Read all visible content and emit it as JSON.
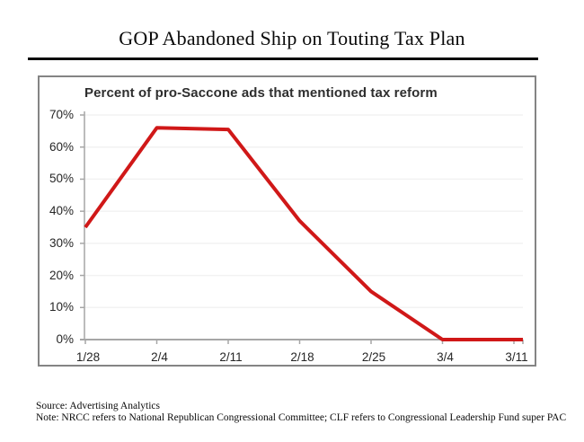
{
  "page": {
    "title": "GOP Abandoned Ship on Touting Tax Plan",
    "source_line": "Source: Advertising Analytics",
    "note_line": "Note: NRCC refers to National Republican Congressional Committee; CLF refers to Congressional Leadership Fund super PAC"
  },
  "chart_data": {
    "type": "line",
    "title": "Percent of pro-Saccone ads that mentioned tax reform",
    "categories": [
      "1/28",
      "2/4",
      "2/11",
      "2/18",
      "2/25",
      "3/4",
      "3/11"
    ],
    "series": [
      {
        "name": "Percent of pro-Saccone ads that mentioned tax reform",
        "values": [
          35,
          66,
          65.5,
          37,
          15,
          0,
          0
        ]
      }
    ],
    "xlabel": "",
    "ylabel": "",
    "ylim": [
      0,
      70
    ],
    "ytick_values": [
      0,
      10,
      20,
      30,
      40,
      50,
      60,
      70
    ],
    "ytick_labels": [
      "0%",
      "10%",
      "20%",
      "30%",
      "40%",
      "50%",
      "60%",
      "70%"
    ],
    "grid": true,
    "legend": false,
    "line_color": "#d01818",
    "axis_color": "#a6a6a6",
    "grid_color": "#f2f2f2",
    "label_color": "#262626"
  }
}
